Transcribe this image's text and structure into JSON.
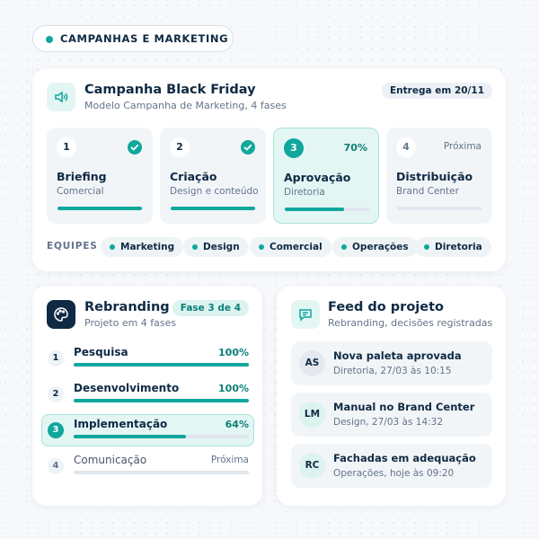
{
  "header": {
    "tag": "CAMPANHAS E MARKETING"
  },
  "campaign": {
    "title": "Campanha Black Friday",
    "subtitle": "Modelo Campanha de Marketing, 4 fases",
    "badge": "Entrega em 20/11",
    "phases": [
      {
        "number": 1,
        "name": "Briefing",
        "subtitle": "Comercial",
        "status": "done",
        "progress": 100
      },
      {
        "number": 2,
        "name": "Criação",
        "subtitle": "Design e conteúdo",
        "status": "done",
        "progress": 100
      },
      {
        "number": 3,
        "name": "Aprovação",
        "subtitle": "Diretoria",
        "status": "active",
        "progress": 70,
        "progress_label": "70%"
      },
      {
        "number": 4,
        "name": "Distribuição",
        "subtitle": "Brand Center",
        "status": "next",
        "status_label": "Próxima",
        "progress": 0
      }
    ],
    "teams_label": "EQUIPES",
    "teams": [
      "Marketing",
      "Design",
      "Comercial",
      "Operações",
      "Diretoria"
    ]
  },
  "rebranding": {
    "title": "Rebranding",
    "subtitle": "Projeto em 4 fases",
    "badge": "Fase 3 de 4",
    "steps": [
      {
        "number": 1,
        "name": "Pesquisa",
        "status": "done",
        "progress": 100,
        "progress_label": "100%"
      },
      {
        "number": 2,
        "name": "Desenvolvimento",
        "status": "done",
        "progress": 100,
        "progress_label": "100%"
      },
      {
        "number": 3,
        "name": "Implementação",
        "status": "active",
        "progress": 64,
        "progress_label": "64%"
      },
      {
        "number": 4,
        "name": "Comunicação",
        "status": "next",
        "status_label": "Próxima",
        "progress": 0
      }
    ]
  },
  "feed": {
    "title": "Feed do projeto",
    "subtitle": "Rebranding, decisões registradas",
    "items": [
      {
        "initials": "AS",
        "title": "Nova paleta aprovada",
        "meta": "Diretoria, 27/03 às 10:15"
      },
      {
        "initials": "LM",
        "title": "Manual no Brand Center",
        "meta": "Design, 27/03 às 14:32"
      },
      {
        "initials": "RC",
        "title": "Fachadas em adequação",
        "meta": "Operações, hoje às 09:20"
      }
    ]
  }
}
